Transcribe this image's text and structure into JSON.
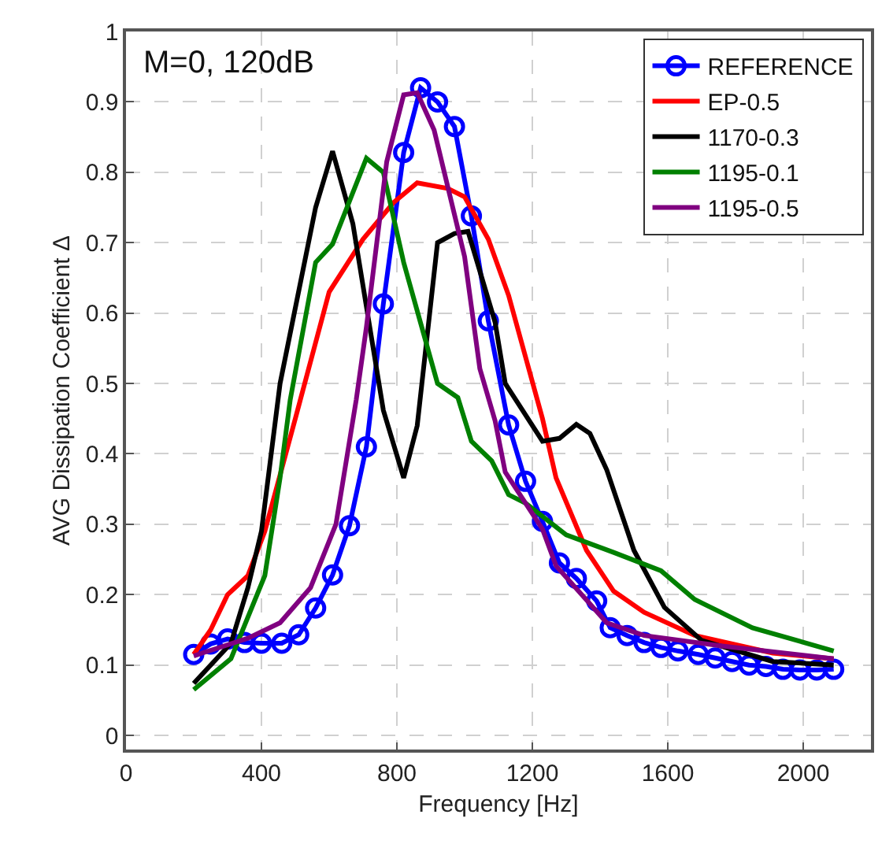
{
  "chart_data": {
    "type": "line",
    "xlabel": "Frequency [Hz]",
    "ylabel": "AVG Dissipation Coefficient Δ",
    "annotations": [
      "M=0, 120dB"
    ],
    "xlim": [
      0,
      2200
    ],
    "xticks": [
      0,
      400,
      800,
      1200,
      1600,
      2000
    ],
    "ylim": [
      -0.02,
      1
    ],
    "yticks": [
      0,
      0.1,
      0.2,
      0.3,
      0.4,
      0.5,
      0.6,
      0.7,
      0.8,
      0.9,
      1
    ],
    "grid": true,
    "legend": "top right",
    "line_style": "solid",
    "series": [
      {
        "name": "REFERENCE",
        "color": "#0000ff",
        "marker": "circle",
        "x": [
          200,
          250,
          300,
          350,
          400,
          460,
          510,
          560,
          610,
          660,
          710,
          760,
          820,
          870,
          920,
          970,
          1020,
          1070,
          1130,
          1180,
          1230,
          1280,
          1330,
          1390,
          1430,
          1480,
          1530,
          1580,
          1630,
          1690,
          1740,
          1790,
          1840,
          1890,
          1940,
          1990,
          2040,
          2090
        ],
        "values": [
          0.115,
          0.13,
          0.137,
          0.132,
          0.131,
          0.131,
          0.143,
          0.181,
          0.228,
          0.298,
          0.41,
          0.613,
          0.828,
          0.92,
          0.9,
          0.865,
          0.738,
          0.589,
          0.441,
          0.361,
          0.304,
          0.245,
          0.223,
          0.191,
          0.153,
          0.142,
          0.132,
          0.125,
          0.12,
          0.115,
          0.11,
          0.105,
          0.1,
          0.098,
          0.094,
          0.093,
          0.093,
          0.094
        ]
      },
      {
        "name": "EP-0.5",
        "color": "#ff0000",
        "marker": "none",
        "x": [
          200,
          250,
          300,
          360,
          410,
          500,
          600,
          700,
          790,
          860,
          950,
          1000,
          1070,
          1130,
          1230,
          1270,
          1360,
          1440,
          1530,
          1680,
          1910,
          2090
        ],
        "values": [
          0.115,
          0.15,
          0.2,
          0.227,
          0.29,
          0.45,
          0.63,
          0.705,
          0.757,
          0.785,
          0.777,
          0.765,
          0.705,
          0.625,
          0.45,
          0.366,
          0.263,
          0.205,
          0.175,
          0.142,
          0.117,
          0.109
        ]
      },
      {
        "name": "1170-0.3",
        "color": "#000000",
        "marker": "none",
        "x": [
          200,
          310,
          360,
          400,
          455,
          560,
          610,
          670,
          760,
          820,
          860,
          920,
          970,
          1010,
          1090,
          1120,
          1230,
          1280,
          1330,
          1370,
          1420,
          1500,
          1590,
          1700,
          1910,
          2090
        ],
        "values": [
          0.074,
          0.131,
          0.21,
          0.29,
          0.5,
          0.75,
          0.83,
          0.727,
          0.462,
          0.366,
          0.44,
          0.7,
          0.713,
          0.716,
          0.587,
          0.5,
          0.418,
          0.422,
          0.442,
          0.429,
          0.377,
          0.263,
          0.182,
          0.135,
          0.105,
          0.1
        ]
      },
      {
        "name": "1195-0.1",
        "color": "#008000",
        "marker": "none",
        "x": [
          200,
          310,
          410,
          455,
          485,
          560,
          610,
          710,
          760,
          820,
          920,
          980,
          1020,
          1080,
          1130,
          1180,
          1300,
          1440,
          1580,
          1680,
          1850,
          2090
        ],
        "values": [
          0.065,
          0.109,
          0.227,
          0.366,
          0.477,
          0.672,
          0.698,
          0.82,
          0.8,
          0.672,
          0.5,
          0.48,
          0.418,
          0.39,
          0.342,
          0.33,
          0.285,
          0.26,
          0.234,
          0.193,
          0.153,
          0.12
        ]
      },
      {
        "name": "1195-0.5",
        "color": "#800080",
        "marker": "none",
        "x": [
          200,
          270,
          360,
          455,
          545,
          620,
          680,
          710,
          770,
          820,
          860,
          910,
          970,
          1000,
          1045,
          1090,
          1120,
          1230,
          1270,
          1420,
          1530,
          1760,
          2090
        ],
        "values": [
          0.113,
          0.124,
          0.138,
          0.16,
          0.21,
          0.3,
          0.477,
          0.58,
          0.815,
          0.91,
          0.913,
          0.86,
          0.74,
          0.68,
          0.521,
          0.447,
          0.374,
          0.293,
          0.241,
          0.16,
          0.142,
          0.127,
          0.109
        ]
      }
    ]
  }
}
